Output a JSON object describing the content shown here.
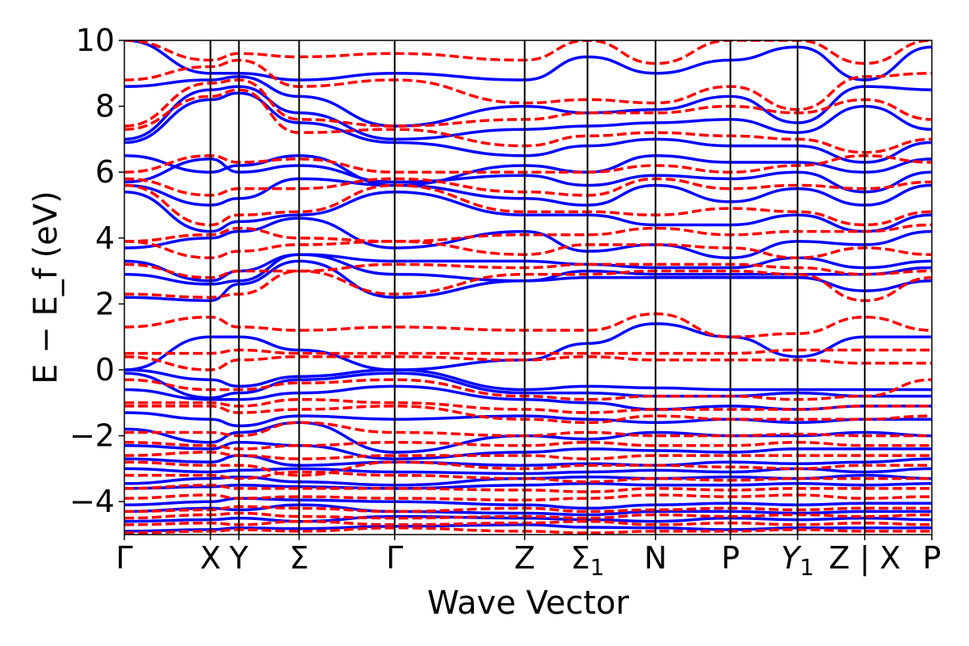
{
  "chart_data": {
    "type": "line",
    "title": "",
    "xlabel": "Wave Vector",
    "ylabel": "E − E_f (eV)",
    "ylim": [
      -5,
      10
    ],
    "yticks": [
      {
        "value": -4,
        "label": "−4"
      },
      {
        "value": -2,
        "label": "−2"
      },
      {
        "value": 0,
        "label": "0"
      },
      {
        "value": 2,
        "label": "2"
      },
      {
        "value": 4,
        "label": "4"
      },
      {
        "value": 6,
        "label": "6"
      },
      {
        "value": 8,
        "label": "8"
      },
      {
        "value": 10,
        "label": "10"
      }
    ],
    "xlim": [
      0,
      9.38
    ],
    "kpoints": [
      {
        "x": 0.0,
        "label": "Γ"
      },
      {
        "x": 1.0,
        "label": "X"
      },
      {
        "x": 1.33,
        "label": "Y"
      },
      {
        "x": 2.03,
        "label": "Σ"
      },
      {
        "x": 3.14,
        "label": "Γ"
      },
      {
        "x": 4.65,
        "label": "Z"
      },
      {
        "x": 5.38,
        "label": "Σ",
        "sub": "1"
      },
      {
        "x": 6.17,
        "label": "N"
      },
      {
        "x": 7.04,
        "label": "P"
      },
      {
        "x": 7.82,
        "label": "Y",
        "sub": "1",
        "italic": true
      },
      {
        "x": 8.6,
        "label": "Z | X"
      },
      {
        "x": 9.38,
        "label": "P"
      }
    ],
    "grid": false,
    "legend": "none",
    "series": [
      {
        "style": "solid",
        "color": "#0000ff",
        "bands": [
          [
            -4.9,
            -4.85,
            -4.8,
            -4.82,
            -4.75,
            -4.7,
            -4.78,
            -4.8,
            -4.85,
            -4.8,
            -4.8,
            -4.8
          ],
          [
            -4.6,
            -4.55,
            -4.5,
            -4.6,
            -4.45,
            -4.5,
            -4.55,
            -4.6,
            -4.5,
            -4.55,
            -4.5,
            -4.55
          ],
          [
            -4.3,
            -4.2,
            -4.25,
            -4.1,
            -4.3,
            -4.35,
            -4.4,
            -4.3,
            -4.3,
            -4.35,
            -4.3,
            -4.3
          ],
          [
            -4.1,
            -4.0,
            -3.9,
            -3.95,
            -4.0,
            -4.1,
            -4.2,
            -4.1,
            -4.05,
            -4.1,
            -4.05,
            -4.05
          ],
          [
            -3.6,
            -3.55,
            -3.5,
            -3.55,
            -3.6,
            -3.5,
            -3.45,
            -3.5,
            -3.5,
            -3.45,
            -3.5,
            -3.45
          ],
          [
            -3.45,
            -3.3,
            -3.25,
            -3.4,
            -3.5,
            -3.3,
            -3.25,
            -3.3,
            -3.25,
            -3.3,
            -3.2,
            -3.3
          ],
          [
            -3.0,
            -3.1,
            -3.05,
            -3.0,
            -3.1,
            -3.15,
            -3.1,
            -3.05,
            -3.1,
            -3.0,
            -3.1,
            -3.0
          ],
          [
            -2.7,
            -2.8,
            -2.6,
            -2.9,
            -2.8,
            -2.9,
            -2.85,
            -2.9,
            -2.8,
            -2.85,
            -2.8,
            -2.7
          ],
          [
            -2.3,
            -2.4,
            -2.2,
            -2.3,
            -2.7,
            -2.5,
            -2.4,
            -2.45,
            -2.5,
            -2.4,
            -2.4,
            -2.4
          ],
          [
            -1.8,
            -2.2,
            -1.9,
            -1.6,
            -2.5,
            -2.0,
            -2.1,
            -1.9,
            -2.0,
            -2.0,
            -1.9,
            -2.0
          ],
          [
            -1.3,
            -1.5,
            -1.7,
            -1.4,
            -1.5,
            -1.4,
            -1.5,
            -1.6,
            -1.5,
            -1.6,
            -1.5,
            -1.5
          ],
          [
            -0.6,
            -0.9,
            -0.9,
            -0.7,
            -0.5,
            -0.9,
            -1.0,
            -1.2,
            -1.1,
            -1.2,
            -1.1,
            -1.1
          ],
          [
            -0.1,
            -0.85,
            -0.7,
            -0.3,
            -0.1,
            -0.7,
            -0.7,
            -0.8,
            -0.8,
            -0.7,
            -0.8,
            -0.8
          ],
          [
            0.0,
            -0.3,
            -0.5,
            -0.2,
            0.0,
            -0.6,
            -0.5,
            -0.55,
            -0.6,
            -0.6,
            -0.6,
            -0.6
          ],
          [
            0.0,
            1.0,
            1.0,
            0.6,
            0.0,
            0.3,
            0.8,
            1.4,
            1.0,
            0.4,
            1.0,
            1.0
          ],
          [
            2.2,
            2.1,
            2.6,
            3.3,
            2.2,
            2.7,
            2.8,
            2.8,
            2.8,
            2.8,
            2.4,
            2.7
          ],
          [
            2.9,
            2.6,
            2.7,
            3.5,
            2.9,
            2.7,
            3.0,
            2.9,
            2.9,
            2.9,
            2.9,
            3.1
          ],
          [
            3.3,
            2.7,
            3.0,
            3.5,
            3.3,
            3.3,
            3.2,
            3.1,
            3.1,
            3.4,
            3.1,
            3.3
          ],
          [
            3.7,
            4.0,
            4.2,
            4.6,
            3.7,
            4.2,
            3.6,
            3.8,
            3.4,
            3.9,
            3.8,
            4.2
          ],
          [
            5.4,
            4.2,
            4.5,
            4.7,
            5.4,
            4.7,
            4.7,
            4.4,
            4.4,
            4.7,
            4.2,
            4.7
          ],
          [
            5.6,
            5.0,
            5.2,
            5.8,
            5.6,
            5.2,
            5.0,
            5.6,
            5.1,
            5.5,
            5.0,
            5.6
          ],
          [
            5.7,
            6.4,
            6.0,
            6.2,
            5.7,
            5.9,
            5.6,
            5.9,
            5.8,
            6.0,
            5.4,
            6.0
          ],
          [
            6.5,
            6.0,
            6.2,
            6.5,
            5.6,
            6.2,
            6.0,
            6.5,
            6.3,
            6.3,
            6.0,
            6.4
          ],
          [
            6.9,
            8.2,
            8.4,
            7.5,
            6.9,
            6.5,
            6.8,
            7.0,
            6.8,
            6.8,
            6.3,
            6.9
          ],
          [
            7.0,
            8.5,
            8.6,
            7.8,
            7.0,
            7.3,
            7.4,
            7.5,
            7.6,
            7.2,
            8.0,
            7.3
          ],
          [
            8.6,
            8.8,
            8.9,
            8.3,
            7.4,
            8.0,
            7.8,
            7.9,
            8.3,
            7.5,
            8.6,
            8.5
          ],
          [
            10.0,
            9.0,
            9.0,
            8.8,
            9.0,
            8.8,
            9.5,
            9.0,
            9.4,
            9.8,
            8.8,
            9.8
          ]
        ]
      },
      {
        "style": "dashed",
        "color": "#ff0000",
        "bands": [
          [
            -4.95,
            -4.9,
            -4.85,
            -4.9,
            -4.8,
            -4.9,
            -4.95,
            -4.9,
            -4.9,
            -4.85,
            -4.9,
            -4.9
          ],
          [
            -4.7,
            -4.65,
            -4.7,
            -4.6,
            -4.7,
            -4.65,
            -4.6,
            -4.7,
            -4.65,
            -4.7,
            -4.65,
            -4.7
          ],
          [
            -4.5,
            -4.4,
            -4.35,
            -4.45,
            -4.5,
            -4.45,
            -4.5,
            -4.4,
            -4.45,
            -4.4,
            -4.45,
            -4.4
          ],
          [
            -4.3,
            -4.25,
            -4.15,
            -4.2,
            -4.3,
            -4.2,
            -4.3,
            -4.25,
            -4.2,
            -4.25,
            -4.2,
            -4.2
          ],
          [
            -3.9,
            -3.8,
            -3.9,
            -3.85,
            -3.9,
            -3.95,
            -3.9,
            -3.8,
            -3.85,
            -3.8,
            -3.9,
            -3.85
          ],
          [
            -3.6,
            -3.5,
            -3.6,
            -3.6,
            -3.6,
            -3.65,
            -3.7,
            -3.6,
            -3.65,
            -3.6,
            -3.6,
            -3.6
          ],
          [
            -3.2,
            -3.2,
            -3.3,
            -3.1,
            -3.2,
            -3.3,
            -3.4,
            -3.3,
            -3.35,
            -3.3,
            -3.3,
            -3.3
          ],
          [
            -2.8,
            -2.9,
            -2.9,
            -3.2,
            -2.8,
            -3.0,
            -2.9,
            -2.9,
            -2.95,
            -3.0,
            -2.9,
            -2.9
          ],
          [
            -2.6,
            -2.5,
            -2.6,
            -2.7,
            -2.6,
            -2.6,
            -2.7,
            -2.6,
            -2.6,
            -2.6,
            -2.6,
            -2.6
          ],
          [
            -2.2,
            -2.3,
            -2.4,
            -2.3,
            -2.2,
            -2.3,
            -2.2,
            -2.3,
            -2.3,
            -2.2,
            -2.3,
            -2.3
          ],
          [
            -1.9,
            -1.9,
            -2.0,
            -1.6,
            -1.9,
            -2.0,
            -1.9,
            -2.0,
            -2.0,
            -1.95,
            -2.0,
            -2.0
          ],
          [
            -1.1,
            -1.1,
            -1.3,
            -1.2,
            -1.1,
            -1.5,
            -1.6,
            -1.4,
            -1.5,
            -1.5,
            -1.5,
            -1.4
          ],
          [
            -1.0,
            -1.0,
            -1.1,
            -0.9,
            -1.0,
            -1.2,
            -1.3,
            -1.2,
            -1.2,
            -1.2,
            -1.1,
            -1.1
          ],
          [
            -0.3,
            -0.6,
            -0.6,
            -0.4,
            -0.3,
            -0.8,
            -0.9,
            -0.8,
            -0.8,
            -0.9,
            -0.8,
            -0.3
          ],
          [
            0.4,
            0.0,
            0.3,
            0.4,
            0.4,
            0.3,
            0.4,
            0.3,
            0.3,
            0.3,
            0.2,
            0.2
          ],
          [
            0.5,
            0.5,
            0.6,
            0.5,
            0.5,
            0.5,
            0.5,
            0.5,
            0.5,
            0.6,
            0.6,
            0.6
          ],
          [
            1.3,
            1.6,
            1.3,
            1.2,
            1.3,
            1.2,
            1.2,
            1.7,
            1.0,
            1.1,
            1.6,
            1.2
          ],
          [
            2.3,
            2.2,
            2.3,
            3.0,
            2.3,
            2.9,
            2.9,
            3.0,
            3.0,
            2.9,
            2.1,
            2.8
          ],
          [
            3.2,
            2.8,
            3.0,
            3.0,
            3.2,
            3.1,
            3.2,
            3.2,
            3.2,
            3.1,
            2.9,
            3.0
          ],
          [
            3.9,
            3.4,
            3.6,
            3.8,
            3.9,
            3.5,
            3.8,
            3.8,
            3.7,
            3.4,
            3.7,
            3.5
          ],
          [
            3.9,
            4.1,
            4.3,
            4.0,
            3.9,
            4.1,
            4.1,
            4.3,
            4.1,
            4.2,
            4.2,
            4.4
          ],
          [
            5.6,
            4.4,
            4.7,
            4.8,
            5.6,
            4.8,
            4.8,
            4.7,
            4.9,
            4.8,
            4.4,
            4.8
          ],
          [
            5.8,
            5.3,
            5.5,
            5.5,
            5.8,
            5.4,
            5.3,
            5.8,
            5.5,
            5.6,
            5.5,
            5.7
          ],
          [
            6.0,
            6.5,
            6.3,
            6.4,
            6.0,
            6.0,
            6.0,
            6.2,
            6.0,
            6.2,
            6.5,
            6.3
          ],
          [
            7.3,
            8.3,
            8.5,
            7.2,
            7.3,
            6.8,
            7.1,
            7.2,
            7.1,
            7.0,
            6.6,
            7.0
          ],
          [
            7.4,
            8.7,
            8.8,
            7.6,
            7.4,
            7.6,
            7.8,
            7.8,
            8.0,
            7.8,
            8.2,
            7.6
          ],
          [
            8.8,
            9.2,
            9.4,
            8.6,
            8.8,
            8.1,
            8.2,
            8.1,
            8.6,
            7.9,
            8.9,
            9.0
          ],
          [
            10.0,
            9.4,
            9.6,
            9.5,
            9.6,
            9.4,
            10.0,
            9.3,
            10.0,
            10.0,
            9.3,
            10.0
          ]
        ]
      }
    ]
  }
}
